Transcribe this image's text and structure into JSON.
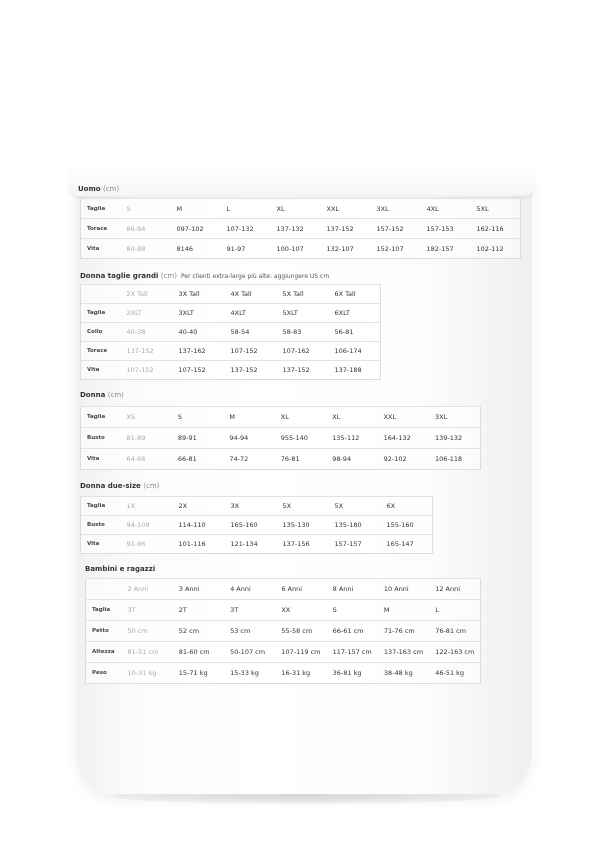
{
  "tables": [
    {
      "title": "Uomo",
      "unit": "(cm)",
      "note": "",
      "rows": [
        {
          "label": "Taglia",
          "cells": [
            "S",
            "M",
            "L",
            "XL",
            "XXL",
            "3XL",
            "4XL",
            "5XL"
          ]
        },
        {
          "label": "Torace",
          "cells": [
            "86-94",
            "097-102",
            "107-132",
            "137-132",
            "137-152",
            "157-152",
            "157-153",
            "162-116"
          ]
        },
        {
          "label": "Vita",
          "cells": [
            "84-88",
            "8146",
            "91-97",
            "100-107",
            "132-107",
            "152-107",
            "182-157",
            "102-112"
          ]
        }
      ]
    },
    {
      "title": "Donna taglie grandi",
      "unit": "(cm)",
      "note": "Per clienti extra-large più alte: aggiungere US cm",
      "rows": [
        {
          "label": "",
          "cells": [
            "2X Tall",
            "3X Tall",
            "4X Tall",
            "5X Tall",
            "6X Tall"
          ]
        },
        {
          "label": "Taglia",
          "cells": [
            "2XLT",
            "3XLT",
            "4XLT",
            "5XLT",
            "6XLT"
          ]
        },
        {
          "label": "Collo",
          "cells": [
            "40-38",
            "40-40",
            "58-54",
            "58-83",
            "56-81"
          ]
        },
        {
          "label": "Torace",
          "cells": [
            "137-152",
            "137-162",
            "107-152",
            "107-162",
            "106-174"
          ]
        },
        {
          "label": "Vita",
          "cells": [
            "107-152",
            "107-152",
            "137-152",
            "137-152",
            "137-188"
          ]
        }
      ]
    },
    {
      "title": "Donna",
      "unit": "(cm)",
      "note": "",
      "rows": [
        {
          "label": "Taglia",
          "cells": [
            "XS",
            "S",
            "M",
            "XL",
            "XL",
            "XXL",
            "3XL"
          ]
        },
        {
          "label": "Busto",
          "cells": [
            "81-89",
            "89-91",
            "94-94",
            "955-140",
            "135-112",
            "164-132",
            "139-132"
          ]
        },
        {
          "label": "Vita",
          "cells": [
            "64-66",
            "66-81",
            "74-72",
            "76-81",
            "98-94",
            "92-102",
            "106-118"
          ]
        }
      ]
    },
    {
      "title": "Donna due-size",
      "unit": "(cm)",
      "note": "",
      "rows": [
        {
          "label": "Taglia",
          "cells": [
            "1X",
            "2X",
            "3X",
            "5X",
            "5X",
            "6X"
          ]
        },
        {
          "label": "Busto",
          "cells": [
            "94-109",
            "114-110",
            "165-160",
            "135-130",
            "135-180",
            "155-160"
          ]
        },
        {
          "label": "Vita",
          "cells": [
            "91-96",
            "101-116",
            "121-134",
            "137-156",
            "157-157",
            "165-147"
          ]
        }
      ]
    },
    {
      "title": "Bambini e ragazzi",
      "unit": "",
      "note": "",
      "rows": [
        {
          "label": "",
          "cells": [
            "2 Anni",
            "3 Anni",
            "4 Anni",
            "6 Anni",
            "8 Anni",
            "10 Anni",
            "12 Anni"
          ]
        },
        {
          "label": "Taglia",
          "cells": [
            "3T",
            "2T",
            "3T",
            "XX",
            "S",
            "M",
            "L"
          ]
        },
        {
          "label": "Petto",
          "cells": [
            "50 cm",
            "52 cm",
            "53 cm",
            "55-58 cm",
            "66-61 cm",
            "71-76 cm",
            "76-81 cm"
          ]
        },
        {
          "label": "Altezza",
          "cells": [
            "81-51 cm",
            "81-60 cm",
            "50-107 cm",
            "107-119 cm",
            "117-157 cm",
            "137-163 cm",
            "122-163 cm"
          ]
        },
        {
          "label": "Peso",
          "cells": [
            "10-31 kg",
            "15-71 kg",
            "15-33 kg",
            "16-31 kg",
            "36-81 kg",
            "38-48 kg",
            "46-51 kg"
          ]
        }
      ]
    }
  ]
}
